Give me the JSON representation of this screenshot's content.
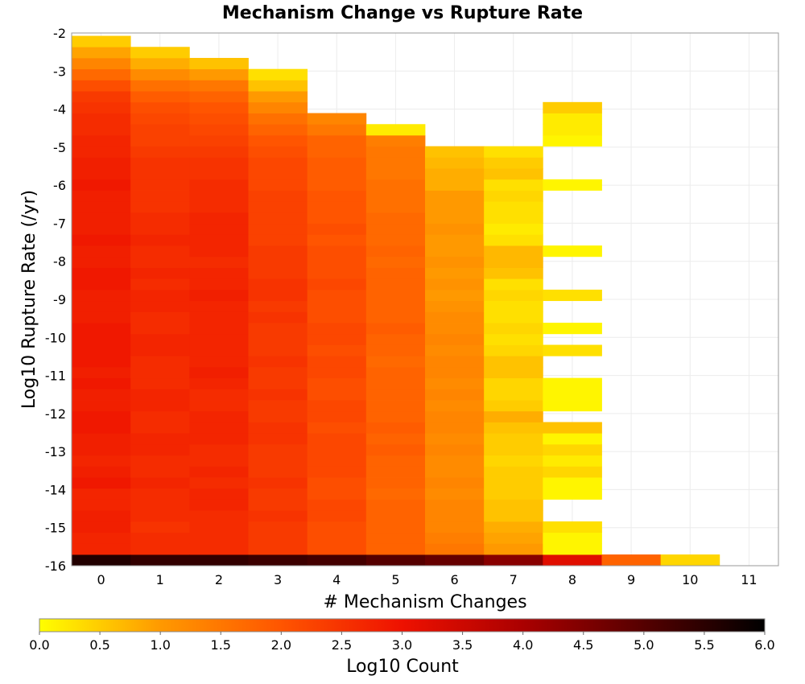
{
  "chart_data": {
    "type": "heatmap",
    "title": "Mechanism Change vs Rupture Rate",
    "xlabel": "# Mechanism Changes",
    "ylabel": "Log10 Rupture Rate (/yr)",
    "x_ticks": [
      "0",
      "1",
      "2",
      "3",
      "4",
      "5",
      "6",
      "7",
      "8",
      "9",
      "10",
      "11"
    ],
    "y_ticks": [
      "-2",
      "-3",
      "-4",
      "-5",
      "-6",
      "-7",
      "-8",
      "-9",
      "-10",
      "-11",
      "-12",
      "-13",
      "-14",
      "-15",
      "-16"
    ],
    "xlim": [
      -0.5,
      11.5
    ],
    "ylim": [
      -16,
      -2
    ],
    "y_bin_width": 0.29,
    "grid": true,
    "colorbar": {
      "label": "Log10 Count",
      "range": [
        0,
        6
      ],
      "ticks": [
        "0.0",
        "0.5",
        "1.0",
        "1.5",
        "2.0",
        "2.5",
        "3.0",
        "3.5",
        "4.0",
        "4.5",
        "5.0",
        "5.5",
        "6.0"
      ],
      "colors": [
        "#ffff00",
        "#ff9900",
        "#ff5500",
        "#ee1100",
        "#aa0000",
        "#550000",
        "#000000"
      ],
      "placement": "bottom"
    },
    "columns": [
      {
        "x": 0,
        "y_start": -15.85,
        "values": [
          5.6,
          2.7,
          2.7,
          2.8,
          2.8,
          2.7,
          2.7,
          2.9,
          2.8,
          2.7,
          2.8,
          2.8,
          2.9,
          2.9,
          2.8,
          2.8,
          2.9,
          2.8,
          2.9,
          2.9,
          2.9,
          2.9,
          2.8,
          2.8,
          2.8,
          2.9,
          2.9,
          2.8,
          2.8,
          2.9,
          2.8,
          2.8,
          2.8,
          2.8,
          2.9,
          2.8,
          2.8,
          2.7,
          2.7,
          2.6,
          2.6,
          2.5,
          2.4,
          2.1,
          1.7,
          1.3,
          0.9,
          0.5
        ]
      },
      {
        "x": 1,
        "y_start": -15.85,
        "values": [
          5.4,
          2.6,
          2.6,
          2.5,
          2.6,
          2.6,
          2.6,
          2.7,
          2.6,
          2.6,
          2.7,
          2.7,
          2.6,
          2.6,
          2.7,
          2.7,
          2.6,
          2.6,
          2.6,
          2.7,
          2.7,
          2.6,
          2.6,
          2.7,
          2.7,
          2.6,
          2.7,
          2.6,
          2.6,
          2.7,
          2.6,
          2.6,
          2.5,
          2.5,
          2.5,
          2.5,
          2.5,
          2.4,
          2.3,
          2.3,
          2.2,
          2.1,
          1.9,
          1.6,
          1.2,
          0.8,
          0.5
        ]
      },
      {
        "x": 2,
        "y_start": -15.85,
        "values": [
          5.4,
          2.6,
          2.6,
          2.6,
          2.6,
          2.7,
          2.7,
          2.6,
          2.7,
          2.6,
          2.6,
          2.7,
          2.7,
          2.7,
          2.6,
          2.6,
          2.7,
          2.8,
          2.7,
          2.7,
          2.7,
          2.7,
          2.7,
          2.7,
          2.8,
          2.7,
          2.7,
          2.6,
          2.7,
          2.7,
          2.7,
          2.7,
          2.6,
          2.6,
          2.6,
          2.5,
          2.5,
          2.4,
          2.3,
          2.2,
          2.1,
          2.0,
          1.8,
          1.5,
          1.0,
          0.6
        ]
      },
      {
        "x": 3,
        "y_start": -15.85,
        "values": [
          5.3,
          2.4,
          2.4,
          2.4,
          2.5,
          2.4,
          2.4,
          2.5,
          2.4,
          2.4,
          2.4,
          2.5,
          2.5,
          2.4,
          2.4,
          2.5,
          2.4,
          2.4,
          2.5,
          2.4,
          2.4,
          2.4,
          2.5,
          2.4,
          2.5,
          2.5,
          2.4,
          2.4,
          2.4,
          2.3,
          2.3,
          2.3,
          2.3,
          2.3,
          2.2,
          2.2,
          2.2,
          2.1,
          2.0,
          1.8,
          1.6,
          1.3,
          1.0,
          0.6,
          0.3
        ]
      },
      {
        "x": 4,
        "y_start": -15.85,
        "values": [
          5.2,
          2.1,
          2.1,
          2.1,
          2.2,
          2.2,
          2.1,
          2.1,
          2.2,
          2.2,
          2.2,
          2.2,
          2.1,
          2.2,
          2.2,
          2.1,
          2.1,
          2.2,
          2.2,
          2.1,
          2.2,
          2.2,
          2.1,
          2.1,
          2.1,
          2.2,
          2.1,
          2.1,
          2.1,
          2.0,
          2.1,
          2.0,
          2.0,
          2.0,
          1.9,
          1.9,
          1.9,
          1.8,
          1.8,
          1.5,
          1.3
        ]
      },
      {
        "x": 5,
        "y_start": -15.85,
        "values": [
          5.0,
          1.8,
          1.8,
          1.8,
          1.8,
          1.8,
          1.7,
          1.8,
          1.8,
          1.8,
          1.9,
          1.8,
          1.9,
          1.8,
          1.8,
          1.8,
          1.8,
          1.8,
          1.7,
          1.8,
          1.8,
          1.9,
          1.8,
          1.8,
          1.8,
          1.8,
          1.8,
          1.7,
          1.8,
          1.7,
          1.7,
          1.7,
          1.6,
          1.6,
          1.6,
          1.5,
          1.5,
          1.5,
          1.4,
          0.2
        ]
      },
      {
        "x": 6,
        "y_start": -15.85,
        "values": [
          4.8,
          1.5,
          1.4,
          1.3,
          1.3,
          1.3,
          1.2,
          1.3,
          1.2,
          1.2,
          1.3,
          1.2,
          1.3,
          1.3,
          1.2,
          1.3,
          1.2,
          1.3,
          1.3,
          1.2,
          1.3,
          1.2,
          1.2,
          1.1,
          1.0,
          1.1,
          1.0,
          1.1,
          1.0,
          1.0,
          1.1,
          1.0,
          1.0,
          1.0,
          0.8,
          0.8,
          0.7,
          0.6
        ]
      },
      {
        "x": 7,
        "y_start": -15.85,
        "values": [
          4.4,
          1.0,
          0.9,
          0.8,
          0.6,
          0.6,
          0.5,
          0.5,
          0.5,
          0.4,
          0.5,
          0.5,
          0.6,
          0.8,
          0.5,
          0.4,
          0.4,
          0.6,
          0.6,
          0.4,
          0.3,
          0.4,
          0.3,
          0.3,
          0.4,
          0.3,
          0.6,
          0.7,
          0.7,
          0.3,
          0.2,
          0.3,
          0.3,
          0.4,
          0.3,
          0.6,
          0.5,
          0.3
        ]
      },
      {
        "x": 8,
        "y_start": -15.85,
        "values": [
          3.2,
          0.1,
          0.1,
          0.3,
          null,
          null,
          0.1,
          0.1,
          0.4,
          0.2,
          0.4,
          0.1,
          0.6,
          null,
          0.1,
          0.1,
          0.1,
          null,
          null,
          0.3,
          null,
          0.1,
          null,
          null,
          0.3,
          null,
          null,
          null,
          0.1,
          null,
          null,
          null,
          null,
          null,
          0.1,
          null,
          null,
          null,
          0.1,
          0.2,
          0.2,
          0.5
        ]
      },
      {
        "x": 9,
        "y_start": -15.85,
        "values": [
          1.8
        ]
      },
      {
        "x": 10,
        "y_start": -15.85,
        "values": [
          0.4
        ]
      }
    ]
  }
}
